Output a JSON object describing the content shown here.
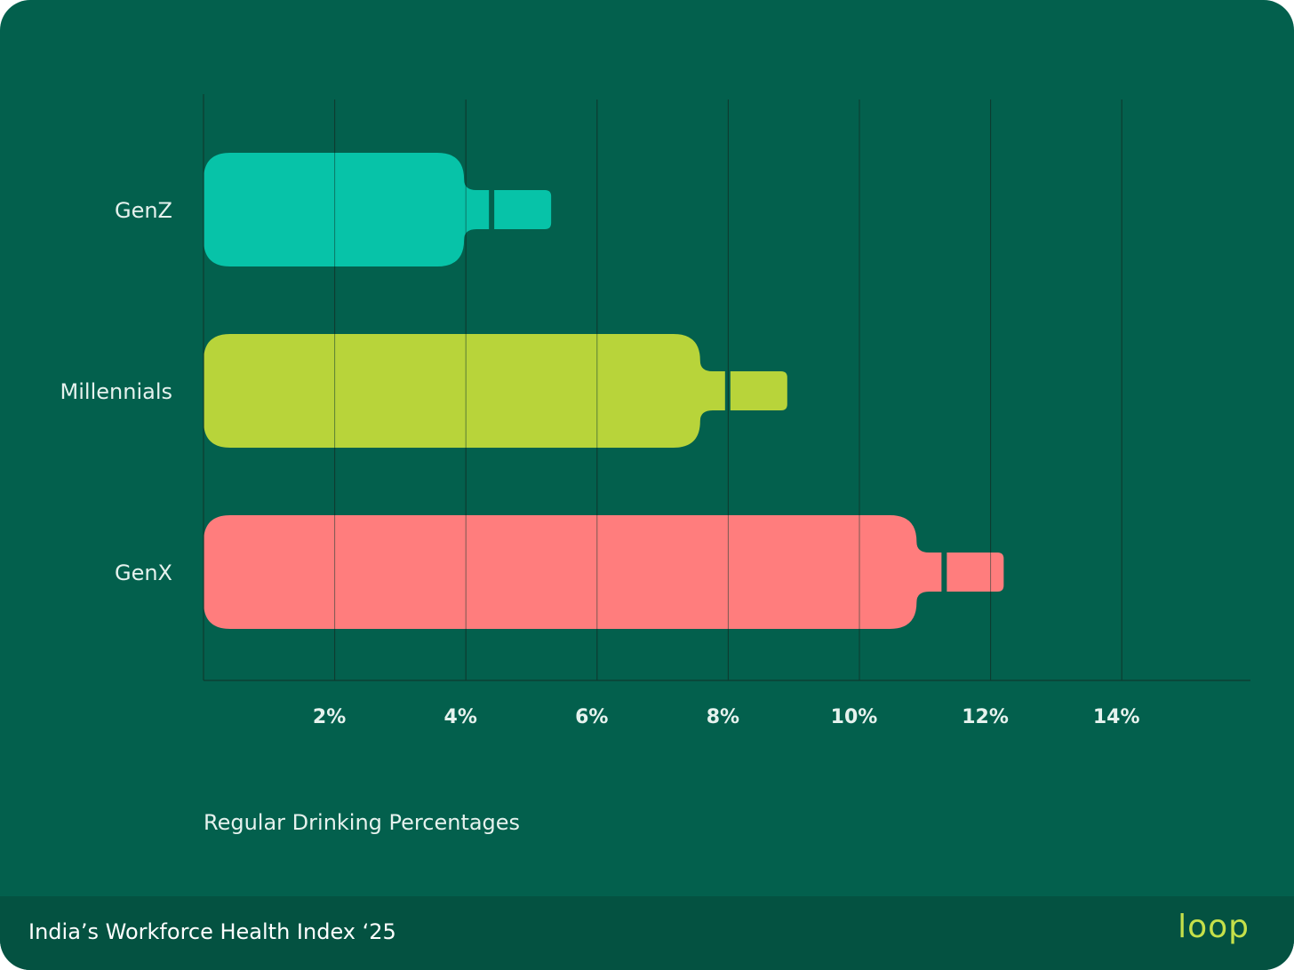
{
  "chart_data": {
    "type": "bar",
    "orientation": "horizontal",
    "categories": [
      "GenZ",
      "Millennials",
      "GenX"
    ],
    "values": [
      5.3,
      8.9,
      12.2
    ],
    "xlim": [
      0,
      16
    ],
    "xticks": [
      2,
      4,
      6,
      8,
      10,
      12,
      14
    ],
    "tick_labels": [
      "2%",
      "4%",
      "6%",
      "8%",
      "10%",
      "12%",
      "14%"
    ],
    "xlabel": "Regular Drinking Percentages",
    "grid": "vertical",
    "colors": [
      "#07c3a8",
      "#b8d43a",
      "#ff7d7d"
    ]
  },
  "footer": {
    "title": "India’s Workforce Health Index ‘25",
    "brand": "loop"
  },
  "theme": {
    "background": "#03604d",
    "footer_background": "#045241",
    "gridline": "#0f3b2f",
    "text": "#e6f2ee",
    "brand_color": "#c5e04a"
  }
}
